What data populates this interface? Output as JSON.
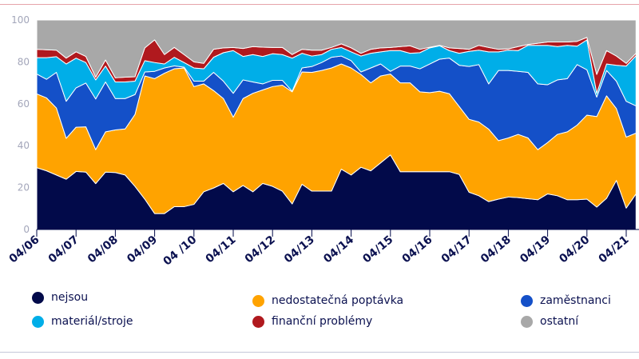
{
  "chart_data": {
    "type": "area",
    "stacked": true,
    "ylim": [
      0,
      100
    ],
    "y_ticks": [
      "0",
      "20",
      "40",
      "60",
      "80",
      "100"
    ],
    "x_ticks": [
      "04/06",
      "04/07",
      "04/08",
      "04/09",
      "04 /10",
      "04/11",
      "04/12",
      "04/13",
      "04/14",
      "04/15",
      "04/16",
      "04/17",
      "04/18",
      "04/19",
      "04/20",
      "04/21"
    ],
    "x_frequency": "quarterly",
    "grid": false,
    "legend_position": "bottom",
    "series": [
      {
        "name": "nejsou",
        "color": "#020a4a",
        "values": [
          29.5,
          28,
          26,
          24,
          27.7,
          27.4,
          21.9,
          27.4,
          27.2,
          26,
          20.6,
          14.5,
          7.6,
          7.6,
          10.9,
          10.9,
          12,
          18,
          19.8,
          22,
          18,
          21,
          18,
          22,
          20.6,
          18.3,
          12.2,
          21.6,
          18.3,
          18.3,
          18.3,
          28.8,
          26,
          29.7,
          28,
          31.8,
          35.6,
          27.6,
          27.6,
          27.6,
          27.6,
          27.6,
          27.6,
          26.3,
          17.8,
          16.1,
          13.3,
          14.5,
          15.5,
          15.2,
          14.7,
          14.2,
          17,
          16.1,
          14.2,
          14.2,
          14.5,
          10.7,
          14.9,
          23.4,
          10.2,
          17
        ]
      },
      {
        "name": "nedostatečná poptávka",
        "color": "#ffa300",
        "values": [
          35.2,
          34.8,
          32,
          19.5,
          21.1,
          21.6,
          16.2,
          19.2,
          20.3,
          22,
          34.3,
          58.8,
          64.4,
          67,
          65.8,
          66.2,
          56.2,
          51.5,
          46.5,
          40.5,
          35.6,
          41.5,
          47,
          44.6,
          47.6,
          50.6,
          53.5,
          53.6,
          56.7,
          57.6,
          58.8,
          50.2,
          51.1,
          44.3,
          42,
          41.5,
          38.6,
          42.4,
          42.4,
          38.1,
          37.7,
          38.4,
          37.2,
          32.4,
          34.8,
          35.2,
          34.6,
          27.9,
          28.2,
          30.2,
          29,
          23.9,
          24.5,
          29.3,
          32.4,
          35.6,
          40.1,
          43.2,
          48.9,
          34.3,
          33.9,
          29
        ]
      },
      {
        "name": "zaměstnanci",
        "color": "#1450c8",
        "values": [
          9.5,
          8.9,
          17,
          17.7,
          18.8,
          20.9,
          24.2,
          23.8,
          15,
          14.5,
          9.5,
          1.9,
          3.5,
          2.5,
          1.4,
          0.4,
          2.6,
          1.3,
          8.7,
          8.3,
          11.4,
          8.9,
          5.4,
          2.9,
          3,
          2.3,
          0.3,
          1.9,
          2.8,
          3.8,
          5.1,
          3.8,
          3.5,
          1.2,
          7.1,
          5.7,
          1.3,
          8,
          8,
          11,
          13.7,
          15.3,
          17,
          19.7,
          25.2,
          27.4,
          21.6,
          33.5,
          32.2,
          30.1,
          31.3,
          31.4,
          27.6,
          26,
          25.4,
          28.9,
          21.6,
          9.3,
          12.1,
          13.1,
          17.1,
          13
        ]
      },
      {
        "name": "materiál/stroje",
        "color": "#00aee8",
        "values": [
          7.8,
          10.3,
          7.5,
          17.8,
          14.2,
          9.8,
          9.1,
          7.6,
          7.9,
          7.9,
          6.4,
          5.4,
          4.2,
          1.9,
          4.1,
          2.2,
          6.3,
          5.9,
          7.2,
          13.6,
          20.4,
          11.2,
          13.1,
          13.1,
          12.7,
          12.3,
          15.8,
          7,
          5,
          3.8,
          3.8,
          4.1,
          4.2,
          7.6,
          7,
          5.8,
          9.9,
          7.4,
          6.1,
          7.7,
          7.7,
          6.4,
          3.6,
          5.7,
          7.2,
          6.9,
          15.3,
          8.9,
          9.7,
          9.9,
          12.9,
          18.4,
          18.8,
          15.9,
          15.9,
          8.8,
          14.3,
          1.8,
          3.1,
          7.6,
          16.8,
          24
        ]
      },
      {
        "name": "finanční problémy",
        "color": "#b0191e",
        "values": [
          4,
          3.8,
          3.1,
          2.8,
          3,
          2.9,
          1.3,
          2.9,
          2,
          2.3,
          2.1,
          6.1,
          10.8,
          4.5,
          4.7,
          3.8,
          2.9,
          2.6,
          3.8,
          2.3,
          1.5,
          3.8,
          3.8,
          4.4,
          3,
          3.4,
          1.7,
          1.9,
          2.8,
          2.1,
          0.9,
          1.7,
          1.9,
          1.3,
          1.9,
          1.9,
          1.5,
          1.9,
          3.6,
          1.6,
          0.3,
          0.2,
          1.3,
          2.3,
          1,
          2.3,
          2.1,
          1.2,
          0.6,
          1.9,
          0.4,
          1,
          1.6,
          2.2,
          1.6,
          2.3,
          1.2,
          9,
          6.4,
          4.4,
          1.3,
          1.1
        ]
      },
      {
        "name": "ostatní",
        "color": "#a8a8a8",
        "values": [
          14,
          14.2,
          14.4,
          18.2,
          15.2,
          17.4,
          27.3,
          19.1,
          27.6,
          27.3,
          27.1,
          13.3,
          9.5,
          16.5,
          13.1,
          16.5,
          20,
          20.7,
          14,
          13.3,
          13.1,
          13.6,
          12.7,
          13,
          13.1,
          13.1,
          16.5,
          14,
          14.4,
          14.4,
          13.1,
          11.4,
          13.3,
          15.9,
          14,
          13.3,
          13.1,
          12.7,
          12.3,
          14,
          13,
          12.1,
          13.3,
          13.6,
          14,
          12.1,
          13.1,
          14,
          13.8,
          12.7,
          11.7,
          11.1,
          10.5,
          10.5,
          10.5,
          10.2,
          8.3,
          26,
          14.6,
          17.2,
          20.7,
          15.9
        ]
      }
    ]
  }
}
